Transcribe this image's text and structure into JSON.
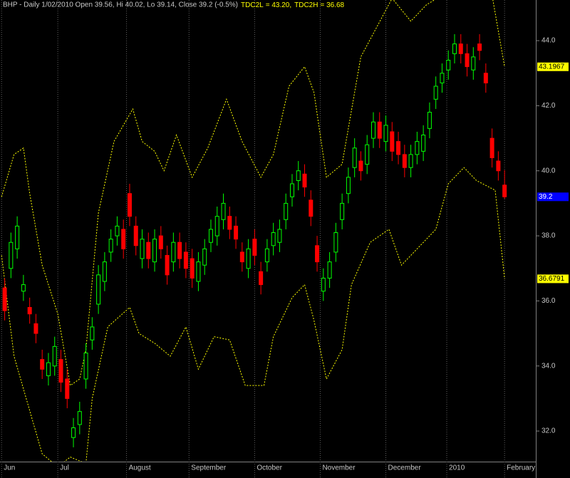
{
  "chart_data": {
    "type": "candlestick",
    "title": "BHP - Daily 1/02/2010 Open 39.56, Hi 40.02, Lo 39.14, Close 39.2 (-0.5%)",
    "x": [
      0,
      2,
      4,
      6,
      8,
      10,
      12,
      14,
      16,
      18,
      20,
      22,
      24,
      26,
      28,
      30,
      32,
      34,
      36,
      38,
      40,
      42,
      44,
      46,
      48,
      50,
      52,
      54,
      56,
      58,
      60,
      62,
      64,
      66,
      68,
      70,
      72,
      74,
      76,
      78,
      80,
      82,
      84,
      86,
      88,
      90,
      92,
      94,
      96,
      98,
      100,
      102,
      104,
      106,
      108,
      110,
      112,
      114,
      116,
      118,
      120,
      122,
      124,
      126,
      128,
      130,
      132,
      134,
      136,
      138,
      140,
      142,
      144,
      146,
      148,
      150,
      152,
      154,
      156,
      158,
      160
    ],
    "open": [
      36.4,
      37.0,
      37.6,
      36.3,
      35.8,
      35.3,
      34.2,
      33.7,
      34.0,
      34.2,
      33.6,
      31.8,
      32.2,
      33.6,
      34.8,
      35.9,
      36.6,
      37.5,
      38.0,
      38.2,
      39.3,
      38.3,
      37.3,
      37.8,
      37.2,
      38.0,
      37.4,
      37.2,
      37.8,
      37.5,
      37.3,
      36.6,
      37.1,
      37.8,
      38.0,
      38.5,
      38.6,
      38.3,
      37.5,
      37.0,
      37.9,
      36.9,
      37.2,
      37.7,
      37.8,
      38.5,
      39.2,
      39.7,
      39.9,
      39.1,
      37.7,
      36.3,
      36.7,
      37.5,
      38.5,
      39.3,
      40.1,
      40.3,
      40.2,
      41.0,
      41.5,
      40.9,
      41.2,
      40.9,
      40.5,
      40.1,
      40.5,
      40.6,
      41.3,
      42.2,
      42.7,
      43.1,
      43.6,
      43.9,
      43.6,
      43.1,
      43.9,
      43.0,
      41.0,
      40.3,
      39.56
    ],
    "high": [
      36.7,
      38.1,
      38.6,
      36.8,
      36.1,
      35.6,
      34.5,
      34.4,
      34.9,
      34.5,
      33.9,
      32.4,
      32.9,
      34.7,
      35.5,
      37.1,
      37.5,
      38.2,
      38.6,
      38.5,
      39.6,
      38.6,
      38.2,
      38.1,
      38.2,
      38.3,
      37.7,
      38.1,
      38.1,
      37.8,
      37.6,
      37.5,
      37.9,
      38.5,
      38.9,
      39.3,
      38.9,
      38.6,
      37.8,
      37.9,
      38.2,
      37.2,
      37.9,
      38.4,
      38.5,
      39.3,
      39.9,
      40.3,
      40.2,
      39.4,
      38.0,
      37.0,
      37.5,
      38.4,
      39.3,
      40.1,
      41.0,
      40.6,
      41.1,
      41.8,
      41.8,
      41.7,
      41.5,
      41.2,
      40.8,
      40.8,
      41.2,
      41.4,
      42.1,
      42.9,
      43.3,
      43.7,
      44.2,
      44.2,
      43.9,
      43.8,
      44.2,
      43.3,
      41.3,
      40.6,
      40.02
    ],
    "low": [
      35.4,
      36.7,
      37.3,
      36.0,
      35.3,
      34.7,
      33.6,
      33.4,
      33.7,
      33.2,
      32.7,
      31.5,
      31.9,
      33.3,
      34.5,
      35.6,
      36.3,
      37.2,
      37.7,
      37.3,
      38.3,
      37.4,
      37.0,
      37.0,
      36.9,
      37.3,
      36.5,
      36.9,
      37.0,
      36.7,
      36.4,
      36.3,
      36.8,
      37.5,
      37.7,
      38.2,
      37.9,
      37.6,
      36.9,
      36.7,
      37.1,
      36.2,
      36.9,
      37.4,
      37.5,
      38.2,
      38.9,
      39.4,
      39.2,
      38.3,
      36.9,
      36.0,
      36.4,
      37.2,
      38.2,
      39.0,
      39.8,
      39.7,
      39.9,
      40.7,
      40.7,
      40.6,
      40.3,
      40.2,
      39.8,
      39.8,
      40.2,
      40.3,
      41.0,
      41.9,
      42.4,
      42.8,
      43.3,
      43.3,
      42.9,
      42.8,
      43.4,
      42.4,
      40.1,
      39.7,
      39.14
    ],
    "close": [
      35.7,
      37.8,
      38.3,
      36.5,
      35.6,
      35.0,
      33.9,
      34.1,
      34.6,
      33.5,
      33.0,
      32.1,
      32.6,
      34.4,
      35.2,
      36.8,
      37.2,
      37.9,
      38.3,
      37.6,
      38.6,
      37.7,
      37.9,
      37.3,
      37.9,
      37.6,
      36.8,
      37.8,
      37.3,
      37.0,
      36.7,
      37.2,
      37.6,
      38.2,
      38.6,
      39.0,
      38.2,
      37.9,
      37.2,
      37.6,
      37.4,
      36.5,
      37.6,
      38.1,
      38.2,
      39.0,
      39.6,
      40.0,
      39.5,
      38.6,
      37.2,
      36.7,
      37.2,
      38.1,
      39.0,
      39.8,
      40.7,
      40.0,
      40.8,
      41.5,
      41.0,
      41.4,
      40.6,
      40.5,
      40.1,
      40.5,
      40.9,
      41.1,
      41.8,
      42.6,
      43.0,
      43.4,
      43.9,
      43.6,
      43.2,
      43.5,
      43.7,
      42.7,
      40.4,
      40.0,
      39.2
    ],
    "up_color": "#00ff00",
    "down_color": "#ff0000",
    "series": [
      {
        "name": "TDC2L",
        "legend_value": "= 43.20,",
        "color": "#ffff00",
        "x": [
          -1,
          3,
          6,
          8,
          12,
          17,
          21,
          24,
          26,
          30,
          35,
          41,
          44,
          48,
          51,
          55,
          60,
          65,
          71,
          76,
          82,
          86,
          91,
          96,
          99,
          103,
          108,
          114,
          119,
          124,
          130,
          135,
          140,
          156,
          160
        ],
        "values": [
          39.2,
          40.5,
          40.7,
          39.3,
          37.1,
          35.6,
          33.4,
          33.6,
          34.5,
          38.7,
          40.9,
          41.9,
          40.9,
          40.6,
          40.0,
          41.1,
          39.8,
          40.7,
          42.2,
          40.9,
          39.8,
          40.5,
          42.6,
          43.2,
          42.4,
          39.8,
          40.2,
          43.5,
          44.4,
          45.3,
          44.6,
          45.1,
          45.4,
          45.4,
          43.1967
        ]
      },
      {
        "name": "TDC2H",
        "legend_value": "= 36.68",
        "color": "#ffff00",
        "x": [
          -1,
          3,
          9,
          12,
          17,
          21,
          26,
          28,
          33,
          40,
          43,
          48,
          53,
          58,
          62,
          67,
          72,
          77,
          83,
          86,
          92,
          96,
          99,
          103,
          108,
          111,
          117,
          123,
          127,
          133,
          138,
          142,
          147,
          151,
          157,
          160
        ],
        "values": [
          37.4,
          34.3,
          32.3,
          31.3,
          30.9,
          31.2,
          31.0,
          33.0,
          35.2,
          35.8,
          35.0,
          34.7,
          34.3,
          35.2,
          33.9,
          34.9,
          34.8,
          33.4,
          33.4,
          34.9,
          36.1,
          36.5,
          35.4,
          33.6,
          34.5,
          36.5,
          37.8,
          38.2,
          37.1,
          37.7,
          38.2,
          39.6,
          40.1,
          39.7,
          39.4,
          36.6791
        ]
      }
    ],
    "xlim": [
      -1.5,
      170
    ],
    "ylim": [
      31.06,
      45.25
    ],
    "xticks": [
      {
        "value": -1,
        "label": "Jun"
      },
      {
        "value": 17,
        "label": "Jul"
      },
      {
        "value": 39,
        "label": "August"
      },
      {
        "value": 59,
        "label": "September"
      },
      {
        "value": 80,
        "label": "October"
      },
      {
        "value": 101,
        "label": "November"
      },
      {
        "value": 122,
        "label": "December"
      },
      {
        "value": 141.5,
        "label": "2010"
      },
      {
        "value": 160,
        "label": "February"
      }
    ],
    "yticks": [
      {
        "value": 32,
        "label": "32.0"
      },
      {
        "value": 34,
        "label": "34.0"
      },
      {
        "value": 36,
        "label": "36.0"
      },
      {
        "value": 38,
        "label": "38.0"
      },
      {
        "value": 40,
        "label": "40.0"
      },
      {
        "value": 42,
        "label": "42.0"
      },
      {
        "value": 44,
        "label": "44.0"
      }
    ],
    "last_value_color": "#0000ff"
  }
}
